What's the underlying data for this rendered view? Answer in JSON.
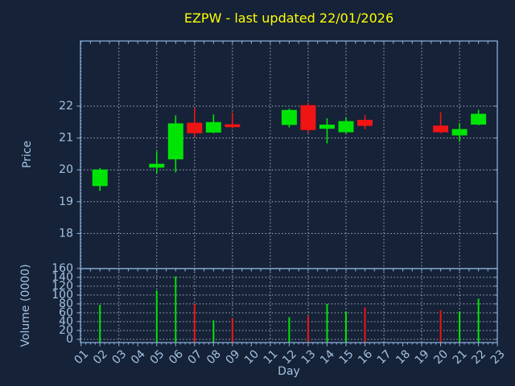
{
  "chart_data": {
    "type": "candlestick",
    "title": "EZPW - last updated 22/01/2026",
    "xlabel": "Day",
    "x_tick_labels": [
      "01",
      "02",
      "03",
      "04",
      "05",
      "06",
      "07",
      "08",
      "09",
      "10",
      "11",
      "12",
      "13",
      "14",
      "15",
      "16",
      "17",
      "18",
      "19",
      "20",
      "21",
      "22",
      "23"
    ],
    "x_gridline_days": [
      1,
      3,
      5,
      7,
      9,
      11,
      13,
      15,
      17,
      19,
      21,
      23
    ],
    "panels": [
      {
        "name": "price",
        "ylabel": "Price",
        "yticks": [
          "22",
          "21",
          "20",
          "19",
          "18"
        ],
        "ytick_values": [
          22,
          21,
          20,
          19,
          18
        ],
        "ylim": [
          16.9,
          24.05
        ],
        "grid": true
      },
      {
        "name": "volume",
        "ylabel": "Volume (0000)",
        "yticks": [
          "160",
          "140",
          "120",
          "100",
          "80",
          "60",
          "40",
          "20",
          "0"
        ],
        "ytick_values": [
          160,
          140,
          120,
          100,
          80,
          60,
          40,
          20,
          0
        ],
        "ylim": [
          -7,
          160
        ],
        "grid": true
      }
    ],
    "series": [
      {
        "label": "02",
        "day": 2,
        "open": 19.49,
        "high": 20.06,
        "low": 19.34,
        "close": 20.01,
        "volume": 78,
        "direction": "up"
      },
      {
        "label": "05",
        "day": 5,
        "open": 20.07,
        "high": 20.58,
        "low": 19.9,
        "close": 20.19,
        "volume": 110,
        "direction": "up"
      },
      {
        "label": "06",
        "day": 6,
        "open": 20.33,
        "high": 21.71,
        "low": 19.92,
        "close": 21.46,
        "volume": 142,
        "direction": "up"
      },
      {
        "label": "07",
        "day": 7,
        "open": 21.48,
        "high": 21.95,
        "low": 21.03,
        "close": 21.15,
        "volume": 80,
        "direction": "down"
      },
      {
        "label": "08",
        "day": 8,
        "open": 21.17,
        "high": 21.74,
        "low": 21.15,
        "close": 21.5,
        "volume": 43,
        "direction": "up"
      },
      {
        "label": "09",
        "day": 9,
        "open": 21.43,
        "high": 21.8,
        "low": 21.3,
        "close": 21.34,
        "volume": 48,
        "direction": "down"
      },
      {
        "label": "12",
        "day": 12,
        "open": 21.41,
        "high": 21.92,
        "low": 21.33,
        "close": 21.88,
        "volume": 50,
        "direction": "up"
      },
      {
        "label": "13",
        "day": 13,
        "open": 22.03,
        "high": 22.11,
        "low": 21.16,
        "close": 21.25,
        "volume": 52,
        "direction": "down"
      },
      {
        "label": "14",
        "day": 14,
        "open": 21.29,
        "high": 21.62,
        "low": 20.83,
        "close": 21.42,
        "volume": 80,
        "direction": "up"
      },
      {
        "label": "15",
        "day": 15,
        "open": 21.18,
        "high": 21.63,
        "low": 21.15,
        "close": 21.53,
        "volume": 63,
        "direction": "up"
      },
      {
        "label": "16",
        "day": 16,
        "open": 21.57,
        "high": 21.72,
        "low": 21.28,
        "close": 21.38,
        "volume": 72,
        "direction": "down"
      },
      {
        "label": "20",
        "day": 20,
        "open": 21.39,
        "high": 21.81,
        "low": 21.15,
        "close": 21.18,
        "volume": 66,
        "direction": "down"
      },
      {
        "label": "21",
        "day": 21,
        "open": 21.08,
        "high": 21.47,
        "low": 20.88,
        "close": 21.28,
        "volume": 63,
        "direction": "up"
      },
      {
        "label": "22",
        "day": 22,
        "open": 21.42,
        "high": 21.89,
        "low": 21.4,
        "close": 21.76,
        "volume": 92,
        "direction": "up"
      }
    ],
    "colors": {
      "background": "#152238",
      "up": "#00e405",
      "down": "#f01414",
      "title": "#ffff00",
      "axis_text": "#a4c2e0",
      "spine": "#86abd3",
      "grid": "#c4cad4"
    },
    "legend": null
  }
}
